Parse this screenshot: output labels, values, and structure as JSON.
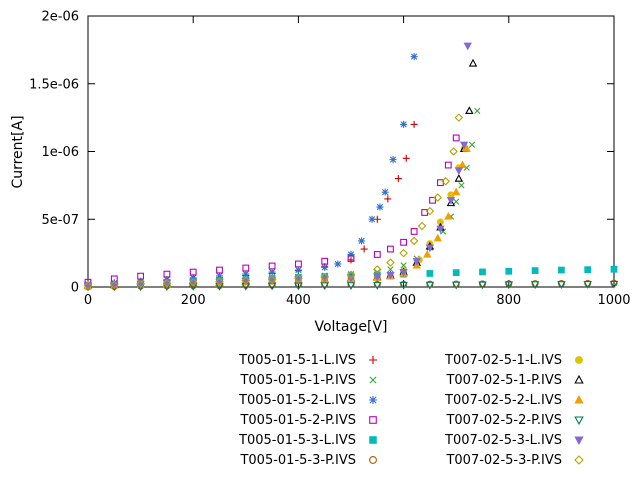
{
  "chart_data": {
    "type": "scatter",
    "title": "",
    "xlabel": "Voltage[V]",
    "ylabel": "Current[A]",
    "xlim": [
      0,
      1000
    ],
    "ylim": [
      0,
      2e-06
    ],
    "grid": false,
    "legend_position": "below-two-columns",
    "xticks": {
      "values": [
        0,
        200,
        400,
        600,
        800,
        1000
      ],
      "labels": [
        "0",
        "200",
        "400",
        "600",
        "800",
        "1000"
      ]
    },
    "yticks": {
      "values": [
        0,
        5e-07,
        1e-06,
        1.5e-06,
        2e-06
      ],
      "labels": [
        "0",
        "5e-07",
        "1e-06",
        "1.5e-06",
        "2e-06"
      ]
    },
    "series": [
      {
        "name": "T005-01-5-1-L.IVS",
        "color": "#cc0000",
        "marker": "plus",
        "points": [
          [
            0,
            2e-08
          ],
          [
            50,
            3e-08
          ],
          [
            100,
            4e-08
          ],
          [
            150,
            5e-08
          ],
          [
            200,
            6e-08
          ],
          [
            250,
            7e-08
          ],
          [
            300,
            8.5e-08
          ],
          [
            350,
            1e-07
          ],
          [
            400,
            1.2e-07
          ],
          [
            450,
            1.5e-07
          ],
          [
            500,
            2e-07
          ],
          [
            525,
            2.8e-07
          ],
          [
            550,
            5e-07
          ],
          [
            570,
            6.5e-07
          ],
          [
            590,
            8e-07
          ],
          [
            605,
            9.5e-07
          ],
          [
            620,
            1.2e-06
          ]
        ]
      },
      {
        "name": "T005-01-5-1-P.IVS",
        "color": "#33aa33",
        "marker": "cross",
        "points": [
          [
            0,
            1.5e-08
          ],
          [
            50,
            2.2e-08
          ],
          [
            100,
            3e-08
          ],
          [
            150,
            3.8e-08
          ],
          [
            200,
            4.5e-08
          ],
          [
            250,
            5.2e-08
          ],
          [
            300,
            6e-08
          ],
          [
            350,
            6.8e-08
          ],
          [
            400,
            7.6e-08
          ],
          [
            450,
            8.5e-08
          ],
          [
            500,
            9.5e-08
          ],
          [
            550,
            1.1e-07
          ],
          [
            575,
            1.3e-07
          ],
          [
            600,
            1.6e-07
          ],
          [
            625,
            2.1e-07
          ],
          [
            650,
            2.9e-07
          ],
          [
            675,
            4.1e-07
          ],
          [
            690,
            5.2e-07
          ],
          [
            700,
            6.3e-07
          ],
          [
            710,
            7.5e-07
          ],
          [
            720,
            8.8e-07
          ],
          [
            730,
            1.05e-06
          ],
          [
            740,
            1.3e-06
          ]
        ]
      },
      {
        "name": "T005-01-5-2-L.IVS",
        "color": "#2f6fce",
        "marker": "asterisk",
        "points": [
          [
            0,
            2e-08
          ],
          [
            50,
            3e-08
          ],
          [
            100,
            4.2e-08
          ],
          [
            150,
            5.5e-08
          ],
          [
            200,
            6.8e-08
          ],
          [
            250,
            8.2e-08
          ],
          [
            300,
            9.6e-08
          ],
          [
            350,
            1.1e-07
          ],
          [
            400,
            1.25e-07
          ],
          [
            450,
            1.45e-07
          ],
          [
            475,
            1.7e-07
          ],
          [
            500,
            2.4e-07
          ],
          [
            520,
            3.4e-07
          ],
          [
            540,
            5e-07
          ],
          [
            555,
            5.9e-07
          ],
          [
            565,
            7e-07
          ],
          [
            580,
            9.4e-07
          ],
          [
            600,
            1.2e-06
          ],
          [
            620,
            1.7e-06
          ]
        ]
      },
      {
        "name": "T005-01-5-2-P.IVS",
        "color": "#bb00bb",
        "marker": "square-open",
        "points": [
          [
            0,
            3.5e-08
          ],
          [
            50,
            6e-08
          ],
          [
            100,
            8e-08
          ],
          [
            150,
            9.5e-08
          ],
          [
            200,
            1.1e-07
          ],
          [
            250,
            1.25e-07
          ],
          [
            300,
            1.4e-07
          ],
          [
            350,
            1.55e-07
          ],
          [
            400,
            1.7e-07
          ],
          [
            450,
            1.9e-07
          ],
          [
            500,
            2.1e-07
          ],
          [
            550,
            2.4e-07
          ],
          [
            575,
            2.8e-07
          ],
          [
            600,
            3.3e-07
          ],
          [
            620,
            4.1e-07
          ],
          [
            640,
            5.5e-07
          ],
          [
            655,
            6.4e-07
          ],
          [
            670,
            7.7e-07
          ],
          [
            685,
            9e-07
          ],
          [
            700,
            1.1e-06
          ]
        ]
      },
      {
        "name": "T005-01-5-3-L.IVS",
        "color": "#00bbbb",
        "marker": "square-filled",
        "points": [
          [
            0,
            6e-09
          ],
          [
            50,
            1.4e-08
          ],
          [
            100,
            2.2e-08
          ],
          [
            150,
            3e-08
          ],
          [
            200,
            3.8e-08
          ],
          [
            250,
            4.6e-08
          ],
          [
            300,
            5.4e-08
          ],
          [
            350,
            6.2e-08
          ],
          [
            400,
            7e-08
          ],
          [
            450,
            7.7e-08
          ],
          [
            500,
            8.3e-08
          ],
          [
            550,
            8.9e-08
          ],
          [
            600,
            9.5e-08
          ],
          [
            650,
            1e-07
          ],
          [
            700,
            1.06e-07
          ],
          [
            750,
            1.11e-07
          ],
          [
            800,
            1.16e-07
          ],
          [
            850,
            1.21e-07
          ],
          [
            900,
            1.25e-07
          ],
          [
            950,
            1.28e-07
          ],
          [
            1000,
            1.31e-07
          ]
        ]
      },
      {
        "name": "T005-01-5-3-P.IVS",
        "color": "#b05a00",
        "marker": "circle-open",
        "points": [
          [
            0,
            3e-09
          ],
          [
            50,
            4e-09
          ],
          [
            100,
            6e-09
          ],
          [
            150,
            7e-09
          ],
          [
            200,
            9e-09
          ],
          [
            250,
            1e-08
          ],
          [
            300,
            1.2e-08
          ],
          [
            350,
            1.3e-08
          ],
          [
            400,
            1.5e-08
          ],
          [
            450,
            1.6e-08
          ],
          [
            500,
            1.8e-08
          ],
          [
            550,
            1.9e-08
          ],
          [
            600,
            2e-08
          ],
          [
            650,
            2.1e-08
          ],
          [
            700,
            2.2e-08
          ],
          [
            750,
            2.3e-08
          ],
          [
            800,
            2.4e-08
          ],
          [
            850,
            2.5e-08
          ],
          [
            900,
            2.6e-08
          ],
          [
            950,
            2.7e-08
          ],
          [
            1000,
            2.8e-08
          ]
        ]
      },
      {
        "name": "T007-02-5-1-L.IVS",
        "color": "#e0c000",
        "marker": "circle-filled",
        "points": [
          [
            0,
            1e-08
          ],
          [
            50,
            1.5e-08
          ],
          [
            100,
            2e-08
          ],
          [
            150,
            2.5e-08
          ],
          [
            200,
            3e-08
          ],
          [
            250,
            3.5e-08
          ],
          [
            300,
            4e-08
          ],
          [
            350,
            4.5e-08
          ],
          [
            400,
            5e-08
          ],
          [
            450,
            5.6e-08
          ],
          [
            500,
            6.2e-08
          ],
          [
            550,
            7e-08
          ],
          [
            575,
            8e-08
          ],
          [
            600,
            1.2e-07
          ],
          [
            630,
            2e-07
          ],
          [
            650,
            3.2e-07
          ],
          [
            670,
            4.8e-07
          ],
          [
            690,
            6.8e-07
          ],
          [
            705,
            8.8e-07
          ],
          [
            715,
            1.02e-06
          ]
        ]
      },
      {
        "name": "T007-02-5-1-P.IVS",
        "color": "#000000",
        "marker": "triangle-up-open",
        "points": [
          [
            0,
            1e-08
          ],
          [
            50,
            1.4e-08
          ],
          [
            100,
            1.9e-08
          ],
          [
            150,
            2.4e-08
          ],
          [
            200,
            2.9e-08
          ],
          [
            250,
            3.4e-08
          ],
          [
            300,
            3.9e-08
          ],
          [
            350,
            4.4e-08
          ],
          [
            400,
            5e-08
          ],
          [
            450,
            5.6e-08
          ],
          [
            500,
            6.3e-08
          ],
          [
            550,
            7.2e-08
          ],
          [
            575,
            8.5e-08
          ],
          [
            600,
            1.1e-07
          ],
          [
            625,
            1.8e-07
          ],
          [
            650,
            3e-07
          ],
          [
            670,
            4.4e-07
          ],
          [
            690,
            6.2e-07
          ],
          [
            705,
            8e-07
          ],
          [
            715,
            1.02e-06
          ],
          [
            725,
            1.3e-06
          ],
          [
            732,
            1.65e-06
          ]
        ]
      },
      {
        "name": "T007-02-5-2-L.IVS",
        "color": "#f0a000",
        "marker": "triangle-up-filled",
        "points": [
          [
            0,
            8e-09
          ],
          [
            50,
            1.2e-08
          ],
          [
            100,
            1.7e-08
          ],
          [
            150,
            2.2e-08
          ],
          [
            200,
            2.7e-08
          ],
          [
            250,
            3.2e-08
          ],
          [
            300,
            3.7e-08
          ],
          [
            350,
            4.2e-08
          ],
          [
            400,
            4.8e-08
          ],
          [
            450,
            5.4e-08
          ],
          [
            500,
            6e-08
          ],
          [
            550,
            6.8e-08
          ],
          [
            575,
            7.8e-08
          ],
          [
            600,
            1e-07
          ],
          [
            625,
            1.6e-07
          ],
          [
            645,
            2.4e-07
          ],
          [
            665,
            3.6e-07
          ],
          [
            685,
            5.2e-07
          ],
          [
            700,
            7e-07
          ],
          [
            712,
            9e-07
          ],
          [
            720,
            1.02e-06
          ]
        ]
      },
      {
        "name": "T007-02-5-2-P.IVS",
        "color": "#00785c",
        "marker": "triangle-down-open",
        "points": [
          [
            0,
            2e-09
          ],
          [
            50,
            3e-09
          ],
          [
            100,
            4e-09
          ],
          [
            150,
            5e-09
          ],
          [
            200,
            6e-09
          ],
          [
            250,
            7e-09
          ],
          [
            300,
            8e-09
          ],
          [
            350,
            9e-09
          ],
          [
            400,
            1e-08
          ],
          [
            450,
            1.1e-08
          ],
          [
            500,
            1.2e-08
          ],
          [
            550,
            1.3e-08
          ],
          [
            600,
            1.4e-08
          ],
          [
            650,
            1.5e-08
          ],
          [
            700,
            1.6e-08
          ],
          [
            750,
            1.7e-08
          ],
          [
            800,
            1.8e-08
          ],
          [
            850,
            1.9e-08
          ],
          [
            900,
            2e-08
          ],
          [
            950,
            2.1e-08
          ],
          [
            1000,
            2.2e-08
          ]
        ]
      },
      {
        "name": "T007-02-5-3-L.IVS",
        "color": "#8468d9",
        "marker": "triangle-down-filled",
        "points": [
          [
            0,
            1.2e-08
          ],
          [
            50,
            1.7e-08
          ],
          [
            100,
            2.2e-08
          ],
          [
            150,
            2.7e-08
          ],
          [
            200,
            3.2e-08
          ],
          [
            250,
            3.7e-08
          ],
          [
            300,
            4.2e-08
          ],
          [
            350,
            4.8e-08
          ],
          [
            400,
            5.4e-08
          ],
          [
            450,
            6e-08
          ],
          [
            500,
            6.7e-08
          ],
          [
            550,
            7.6e-08
          ],
          [
            575,
            8.8e-08
          ],
          [
            600,
            1.1e-07
          ],
          [
            625,
            1.9e-07
          ],
          [
            650,
            2.9e-07
          ],
          [
            670,
            4.3e-07
          ],
          [
            690,
            6.4e-07
          ],
          [
            705,
            8.6e-07
          ],
          [
            715,
            1.05e-06
          ],
          [
            722,
            1.78e-06
          ]
        ]
      },
      {
        "name": "T007-02-5-3-P.IVS",
        "color": "#b8a000",
        "marker": "diamond-open",
        "points": [
          [
            0,
            1e-08
          ],
          [
            50,
            1.6e-08
          ],
          [
            100,
            2.2e-08
          ],
          [
            150,
            2.8e-08
          ],
          [
            200,
            3.4e-08
          ],
          [
            250,
            4e-08
          ],
          [
            300,
            4.7e-08
          ],
          [
            350,
            5.4e-08
          ],
          [
            400,
            6.2e-08
          ],
          [
            450,
            7.2e-08
          ],
          [
            500,
            9e-08
          ],
          [
            550,
            1.3e-07
          ],
          [
            575,
            1.8e-07
          ],
          [
            600,
            2.5e-07
          ],
          [
            620,
            3.4e-07
          ],
          [
            635,
            4.5e-07
          ],
          [
            650,
            5.6e-07
          ],
          [
            665,
            6.6e-07
          ],
          [
            680,
            7.8e-07
          ],
          [
            695,
            1e-06
          ],
          [
            705,
            1.25e-06
          ]
        ]
      }
    ]
  }
}
